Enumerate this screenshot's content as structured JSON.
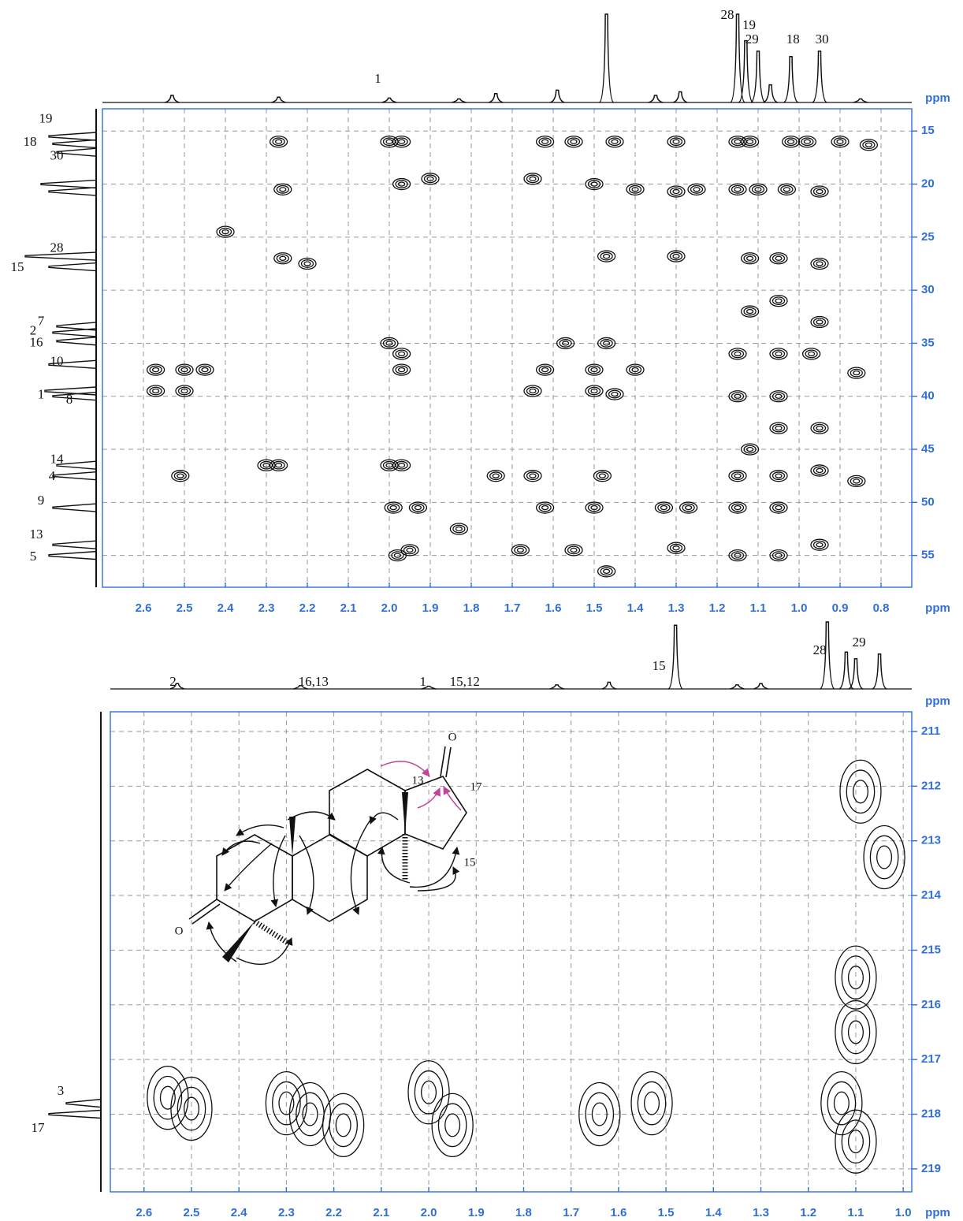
{
  "chart_data": [
    {
      "type": "contour",
      "x_label": "ppm",
      "y_label": "ppm",
      "xlim": [
        2.7,
        0.725
      ],
      "ylim": [
        12.9,
        58.0
      ],
      "xticks": [
        2.6,
        2.5,
        2.4,
        2.3,
        2.2,
        2.1,
        {
          "value": 2,
          "label": "2.0"
        },
        1.9,
        1.8,
        1.7,
        1.6,
        1.5,
        1.4,
        1.3,
        1.2,
        1.1,
        {
          "value": 1,
          "label": "1.0"
        },
        0.9,
        0.8
      ],
      "yticks": [
        15,
        20,
        25,
        30,
        35,
        40,
        45,
        50,
        55
      ],
      "grid": true,
      "proton_projection": {
        "x": [
          2.53,
          2.27,
          2.0,
          1.83,
          1.74,
          1.59,
          1.47,
          1.35,
          1.29,
          1.15,
          1.13,
          1.1,
          1.07,
          1.02,
          0.95,
          0.85
        ],
        "heights": [
          8,
          6,
          5,
          4,
          10,
          14,
          100,
          8,
          12,
          100,
          70,
          58,
          20,
          52,
          58,
          4
        ]
      },
      "proton_labels": [
        {
          "text": "28",
          "x": 1.175
        },
        {
          "text": "19",
          "x": 1.122
        },
        {
          "text": "29",
          "x": 1.115
        },
        {
          "text": "18",
          "x": 1.015
        },
        {
          "text": "30",
          "x": 0.944
        },
        {
          "text": "1",
          "x": 2.028
        }
      ],
      "carbon_projection": {
        "y": [
          15.5,
          16.2,
          17.0,
          20.0,
          20.7,
          26.8,
          27.8,
          33.4,
          34.0,
          34.8,
          37.0,
          39.5,
          40.0,
          46.5,
          47.5,
          50.5,
          54.0,
          55.0
        ],
        "heights": [
          60,
          55,
          50,
          70,
          60,
          90,
          60,
          50,
          55,
          50,
          60,
          65,
          55,
          50,
          55,
          55,
          55,
          60
        ]
      },
      "carbon_labels": [
        {
          "text": "19",
          "y": 13.9
        },
        {
          "text": "18",
          "y": 16.1
        },
        {
          "text": "30",
          "y": 17.4
        },
        {
          "text": "28",
          "y": 26.1
        },
        {
          "text": "15",
          "y": 27.9
        },
        {
          "text": "7",
          "y": 33.0
        },
        {
          "text": "2",
          "y": 33.9
        },
        {
          "text": "16",
          "y": 35.0
        },
        {
          "text": "10",
          "y": 36.8
        },
        {
          "text": "1",
          "y": 39.9
        },
        {
          "text": "8",
          "y": 40.4
        },
        {
          "text": "14",
          "y": 46.0
        },
        {
          "text": "4",
          "y": 47.6
        },
        {
          "text": "9",
          "y": 49.9
        },
        {
          "text": "13",
          "y": 53.1
        },
        {
          "text": "5",
          "y": 55.2
        }
      ],
      "peaks": {
        "x": [
          2.27,
          2.0,
          1.97,
          1.62,
          1.55,
          1.45,
          1.3,
          1.15,
          1.12,
          1.02,
          0.98,
          0.9,
          0.83,
          2.26,
          1.97,
          1.9,
          1.65,
          1.5,
          1.4,
          1.3,
          1.25,
          1.15,
          1.1,
          1.03,
          0.95,
          2.4,
          2.26,
          2.2,
          1.47,
          1.3,
          1.12,
          1.05,
          0.95,
          2.0,
          1.97,
          1.57,
          1.47,
          1.15,
          1.05,
          0.97,
          2.57,
          2.5,
          2.57,
          2.5,
          2.45,
          1.97,
          1.62,
          1.5,
          1.4,
          1.65,
          1.5,
          1.45,
          1.15,
          1.05,
          0.86,
          2.3,
          2.27,
          2.0,
          1.97,
          1.74,
          1.65,
          1.48,
          1.15,
          1.05,
          0.95,
          0.86,
          2.51,
          1.99,
          1.93,
          1.62,
          1.5,
          1.33,
          1.27,
          1.15,
          1.05,
          1.83,
          1.98,
          1.95,
          1.68,
          1.55,
          1.3,
          1.15,
          1.05,
          0.95,
          1.47,
          1.12,
          1.05,
          0.95,
          1.12,
          1.05,
          0.95
        ],
        "y": [
          16,
          16,
          16,
          16,
          16,
          16,
          16,
          16,
          16,
          16,
          16,
          16,
          16.3,
          20.5,
          20,
          19.5,
          19.5,
          20,
          20.5,
          20.7,
          20.5,
          20.5,
          20.5,
          20.5,
          20.7,
          24.5,
          27,
          27.5,
          26.8,
          26.8,
          27,
          27,
          27.5,
          35,
          36,
          35,
          35,
          36,
          36,
          36,
          37.5,
          37.5,
          39.5,
          39.5,
          37.5,
          37.5,
          37.5,
          37.5,
          37.5,
          39.5,
          39.5,
          39.8,
          40,
          40,
          37.8,
          46.5,
          46.5,
          46.5,
          46.5,
          47.5,
          47.5,
          47.5,
          47.5,
          47.5,
          47,
          48,
          47.5,
          50.5,
          50.5,
          50.5,
          50.5,
          50.5,
          50.5,
          50.5,
          50.5,
          52.5,
          55,
          54.5,
          54.5,
          54.5,
          54.3,
          55,
          55,
          54,
          56.5,
          45,
          43,
          43,
          32,
          31,
          33
        ]
      }
    },
    {
      "type": "contour",
      "x_label": "ppm",
      "y_label": "ppm",
      "xlim": [
        2.671,
        0.982
      ],
      "ylim": [
        210.64,
        219.42
      ],
      "xticks": [
        2.6,
        2.5,
        2.4,
        2.3,
        2.2,
        2.1,
        {
          "value": 2,
          "label": "2.0"
        },
        1.9,
        1.8,
        1.7,
        1.6,
        1.5,
        1.4,
        1.3,
        1.2,
        1.1,
        {
          "value": 1,
          "label": "1.0"
        }
      ],
      "yticks": [
        211,
        212,
        213,
        214,
        215,
        216,
        217,
        218,
        219
      ],
      "grid": true,
      "proton_projection": {
        "x": [
          2.53,
          2.27,
          2.0,
          1.73,
          1.62,
          1.48,
          1.35,
          1.3,
          1.16,
          1.12,
          1.1,
          1.05
        ],
        "heights": [
          8,
          5,
          4,
          6,
          10,
          95,
          6,
          8,
          100,
          55,
          45,
          52
        ]
      },
      "proton_labels": [
        {
          "text": "2",
          "x": 2.539
        },
        {
          "text": "16,13",
          "x": 2.243
        },
        {
          "text": "1",
          "x": 2.012
        },
        {
          "text": "15,12",
          "x": 1.924
        },
        {
          "text": "15",
          "x": 1.515
        },
        {
          "text": "28",
          "x": 1.176
        },
        {
          "text": "29",
          "x": 1.093
        }
      ],
      "carbon_projection": {
        "y": [
          217.8,
          218.0
        ],
        "heights": [
          40,
          60
        ]
      },
      "carbon_labels": [
        {
          "text": "3",
          "y": 217.59
        },
        {
          "text": "17",
          "y": 218.27
        }
      ],
      "peaks": {
        "x": [
          2.55,
          2.5,
          2.3,
          2.25,
          2.18,
          2.0,
          1.95,
          1.53,
          1.64,
          1.13,
          1.1,
          1.1,
          1.1,
          1.04,
          1.09
        ],
        "y": [
          217.7,
          217.9,
          217.8,
          218.0,
          218.2,
          217.6,
          218.2,
          217.8,
          218.0,
          217.8,
          218.5,
          216.5,
          215.5,
          213.3,
          212.1
        ]
      },
      "structure_labels": [
        "O",
        "13",
        "17",
        "15",
        "O"
      ]
    }
  ]
}
